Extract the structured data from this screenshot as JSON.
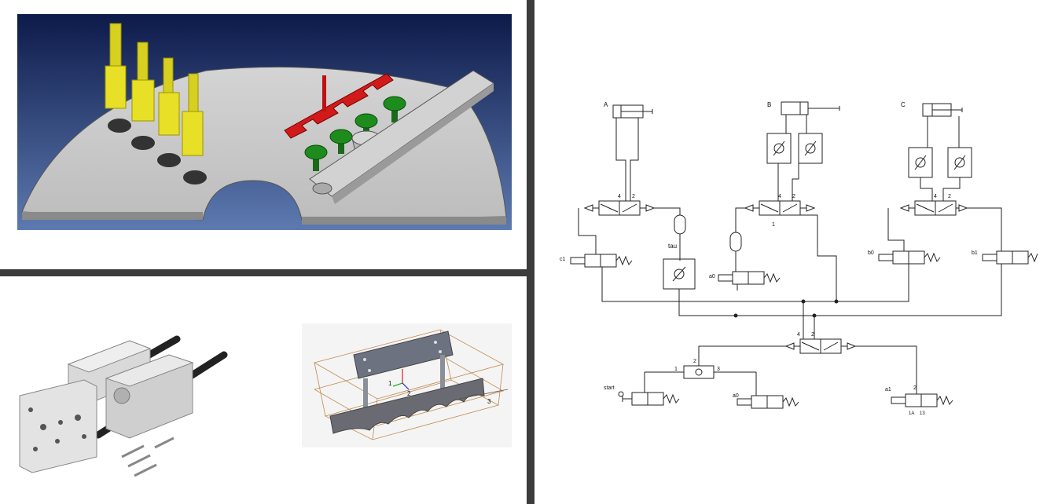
{
  "figure": {
    "panels": [
      {
        "id": "3d-turntable-model",
        "description_hidden": true
      },
      {
        "id": "linear-guide-unit-photo"
      },
      {
        "id": "wireframe-gripper-model"
      },
      {
        "id": "pneumatic-circuit-diagram"
      }
    ]
  },
  "wireframe": {
    "axis_labels": [
      "1",
      "2",
      "3"
    ]
  },
  "circuit": {
    "cylinders": [
      "A",
      "B",
      "C"
    ],
    "timer_label": "tau",
    "valve_labels": {
      "c1": "c1",
      "a0_top": "a0",
      "b0": "b0",
      "b1": "b1",
      "start": "start",
      "a0_bottom": "a0",
      "a1": "a1"
    },
    "port_numbers": {
      "p2": "2",
      "p4": "4",
      "p1": "1",
      "p3": "3",
      "p5": "5",
      "p1A": "1A",
      "p13": "13"
    }
  }
}
